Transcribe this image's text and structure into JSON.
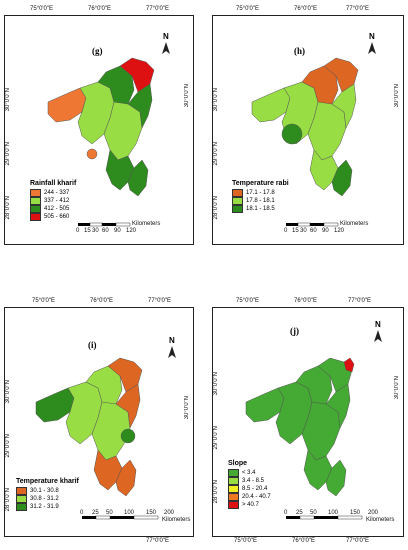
{
  "coords_top": [
    "75°0'0\"E",
    "76°0'0\"E",
    "77°0'0\"E"
  ],
  "coords_bottom": [
    "75°0'0\"E",
    "76°0'0\"E",
    "77°0'0\"E"
  ],
  "coords_lat": [
    "30°0'0\"N",
    "29°0'0\"N",
    "28°0'0\"N"
  ],
  "north_letter": "N",
  "scale_units": "Kilometers",
  "panels": [
    {
      "id": "g",
      "label": "(g)",
      "legend_title": "Rainfall kharif",
      "classes": [
        {
          "range": "244 - 337",
          "color": "#ee7733"
        },
        {
          "range": "337 - 412",
          "color": "#99dd44"
        },
        {
          "range": "412 - 505",
          "color": "#2e8b1e"
        },
        {
          "range": "505 - 660",
          "color": "#dd1111"
        }
      ],
      "scale_ticks": [
        "0",
        "15",
        "30",
        "60",
        "90",
        "120"
      ]
    },
    {
      "id": "h",
      "label": "(h)",
      "legend_title": "Temperature rabi",
      "classes": [
        {
          "range": "17.1 - 17.8",
          "color": "#dd6622"
        },
        {
          "range": "17.8 - 18.1",
          "color": "#99dd44"
        },
        {
          "range": "18.1 - 18.5",
          "color": "#2e8b1e"
        }
      ],
      "scale_ticks": [
        "0",
        "15",
        "30",
        "60",
        "90",
        "120"
      ]
    },
    {
      "id": "i",
      "label": "(i)",
      "legend_title": "Temperature kharif",
      "classes": [
        {
          "range": "30.1 - 30.8",
          "color": "#dd6622"
        },
        {
          "range": "30.8 - 31.2",
          "color": "#99dd44"
        },
        {
          "range": "31.2 - 31.9",
          "color": "#2e8b1e"
        }
      ],
      "scale_ticks": [
        "0",
        "25",
        "50",
        "100",
        "150",
        "200"
      ]
    },
    {
      "id": "j",
      "label": "(j)",
      "legend_title": "Slope",
      "classes": [
        {
          "range": "< 3.4",
          "color": "#44aa33"
        },
        {
          "range": "3.4 - 8.5",
          "color": "#99dd44"
        },
        {
          "range": "8.5 - 20.4",
          "color": "#eeee22"
        },
        {
          "range": "20.4 - 40.7",
          "color": "#ee7722"
        },
        {
          "range": "> 40.7",
          "color": "#dd1111"
        }
      ],
      "scale_ticks": [
        "0",
        "25",
        "50",
        "100",
        "150",
        "200"
      ]
    }
  ]
}
